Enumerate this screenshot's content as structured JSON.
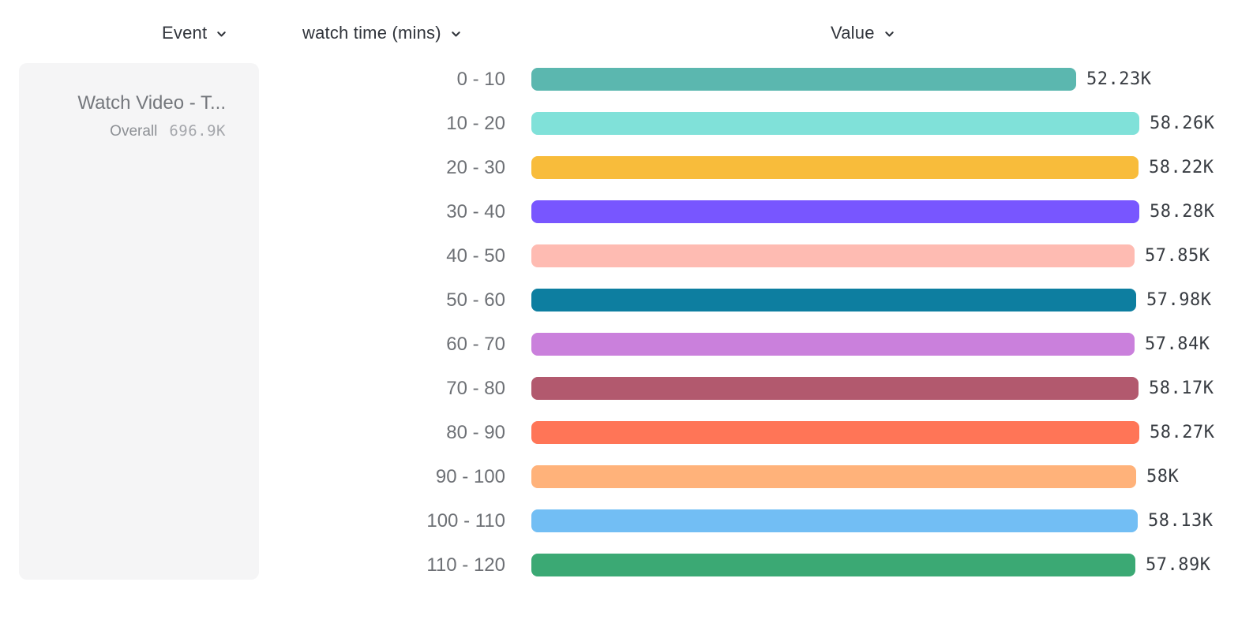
{
  "header": {
    "columns": [
      {
        "label": "Event"
      },
      {
        "label": "watch time (mins)"
      },
      {
        "label": "Value"
      }
    ]
  },
  "event_panel": {
    "title": "Watch Video - T...",
    "overall_label": "Overall",
    "overall_value": "696.9K"
  },
  "chart_data": {
    "type": "bar",
    "orientation": "horizontal",
    "title": "",
    "xlabel": "Value",
    "ylabel": "watch time (mins)",
    "categories": [
      "0 - 10",
      "10 - 20",
      "20 - 30",
      "30 - 40",
      "40 - 50",
      "50 - 60",
      "60 - 70",
      "70 - 80",
      "80 - 90",
      "90 - 100",
      "100 - 110",
      "110 - 120"
    ],
    "values_k": [
      52.23,
      58.26,
      58.22,
      58.28,
      57.85,
      57.98,
      57.84,
      58.17,
      58.27,
      58.0,
      58.13,
      57.89
    ],
    "value_labels": [
      "52.23K",
      "58.26K",
      "58.22K",
      "58.28K",
      "57.85K",
      "57.98K",
      "57.84K",
      "58.17K",
      "58.27K",
      "58K",
      "58.13K",
      "57.89K"
    ],
    "bar_colors": [
      "#5BB7AF",
      "#80E1D9",
      "#F8BC3B",
      "#7856FF",
      "#FEBBB2",
      "#0D7EA0",
      "#CA80DC",
      "#B2596E",
      "#FF7557",
      "#FFB27A",
      "#72BEF4",
      "#3BA974"
    ],
    "max_value_k": 58.28,
    "grid": false,
    "legend": false
  },
  "colors": {
    "header_text": "#30343b",
    "category_text": "#6d7075",
    "value_text": "#383c42",
    "panel_bg": "#f5f5f6",
    "panel_title_text": "#74777c",
    "panel_secondary_text": "#8d9095",
    "panel_value_text": "#a5a7ac"
  }
}
